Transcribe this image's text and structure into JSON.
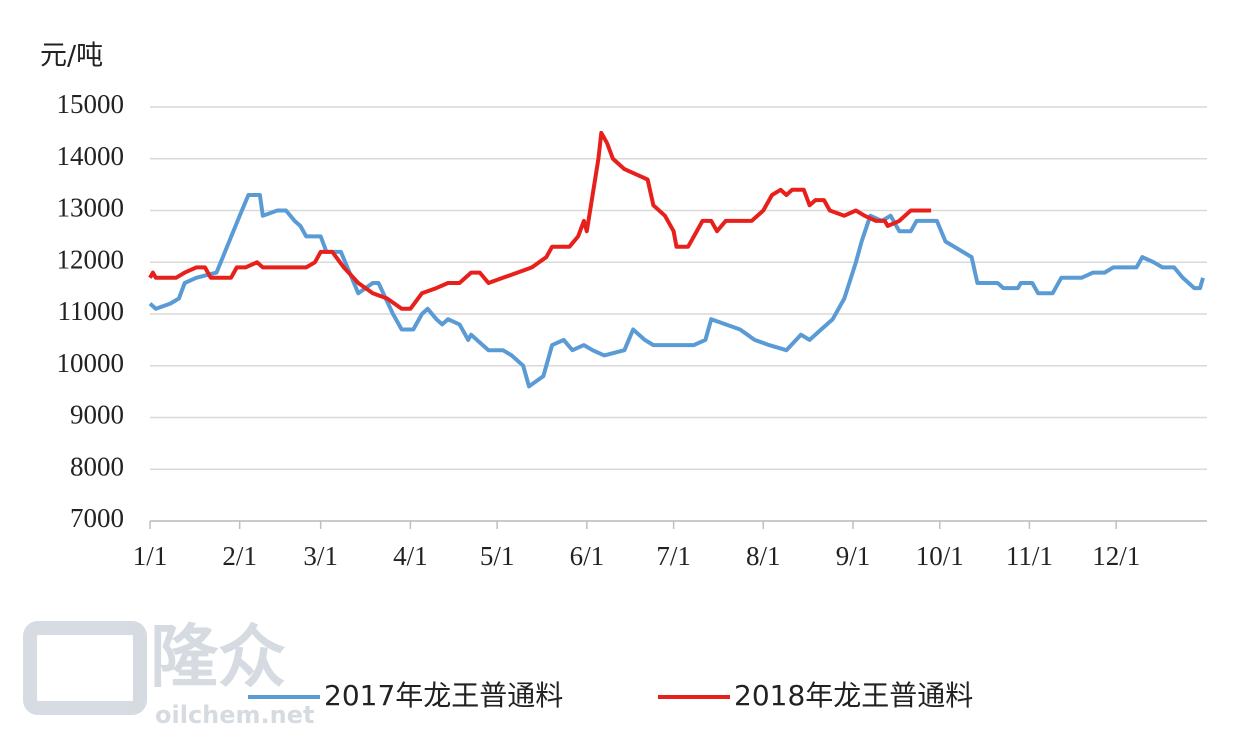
{
  "chart_data": {
    "type": "line",
    "y_label": "元/吨",
    "watermark": {
      "brand": "隆众",
      "site": "oilchem.net"
    },
    "xlim": [
      "1/1",
      "12/31"
    ],
    "xticks": [
      "1/1",
      "2/1",
      "3/1",
      "4/1",
      "5/1",
      "6/1",
      "7/1",
      "8/1",
      "9/1",
      "10/1",
      "11/1",
      "12/1"
    ],
    "ylim": [
      7000,
      15000
    ],
    "yticks": [
      7000,
      8000,
      9000,
      10000,
      11000,
      12000,
      13000,
      14000,
      15000
    ],
    "grid": true,
    "legend": "bottom",
    "series": [
      {
        "name": "2017年龙王普通料",
        "color": "#5b9bd5",
        "x": [
          "1/1",
          "1/3",
          "1/8",
          "1/11",
          "1/13",
          "1/17",
          "1/24",
          "2/1",
          "2/4",
          "2/8",
          "2/9",
          "2/14",
          "2/17",
          "2/20",
          "2/22",
          "2/24",
          "3/1",
          "3/3",
          "3/8",
          "3/11",
          "3/14",
          "3/19",
          "3/21",
          "3/26",
          "3/29",
          "4/2",
          "4/5",
          "4/7",
          "4/10",
          "4/12",
          "4/14",
          "4/18",
          "4/21",
          "4/22",
          "4/28",
          "5/3",
          "5/6",
          "5/10",
          "5/12",
          "5/17",
          "5/20",
          "5/24",
          "5/27",
          "5/31",
          "6/3",
          "6/7",
          "6/14",
          "6/17",
          "6/21",
          "6/24",
          "7/8",
          "7/12",
          "7/14",
          "7/19",
          "7/24",
          "7/29",
          "8/3",
          "8/9",
          "8/14",
          "8/17",
          "8/21",
          "8/25",
          "8/29",
          "9/2",
          "9/4",
          "9/7",
          "9/11",
          "9/14",
          "9/17",
          "9/21",
          "9/23",
          "9/30",
          "10/3",
          "10/12",
          "10/14",
          "10/21",
          "10/23",
          "10/28",
          "10/29",
          "11/2",
          "11/4",
          "11/9",
          "11/12",
          "11/19",
          "11/23",
          "11/27",
          "11/30",
          "12/8",
          "12/10",
          "12/14",
          "12/17",
          "12/21",
          "12/24",
          "12/28",
          "12/30",
          "12/31"
        ],
        "values": [
          11200,
          11100,
          11200,
          11300,
          11600,
          11700,
          11800,
          12900,
          13300,
          13300,
          12900,
          13000,
          13000,
          12800,
          12700,
          12500,
          12500,
          12200,
          12200,
          11800,
          11400,
          11600,
          11600,
          11000,
          10700,
          10700,
          11000,
          11100,
          10900,
          10800,
          10900,
          10800,
          10500,
          10600,
          10300,
          10300,
          10200,
          10000,
          9600,
          9800,
          10400,
          10500,
          10300,
          10400,
          10300,
          10200,
          10300,
          10700,
          10500,
          10400,
          10400,
          10500,
          10900,
          10800,
          10700,
          10500,
          10400,
          10300,
          10600,
          10500,
          10700,
          10900,
          11300,
          12000,
          12400,
          12900,
          12800,
          12900,
          12600,
          12600,
          12800,
          12800,
          12400,
          12100,
          11600,
          11600,
          11500,
          11500,
          11600,
          11600,
          11400,
          11400,
          11700,
          11700,
          11800,
          11800,
          11900,
          11900,
          12100,
          12000,
          11900,
          11900,
          11700,
          11500,
          11500,
          11700
        ]
      },
      {
        "name": "2018年龙王普通料",
        "color": "#e8201c",
        "x": [
          "1/1",
          "1/2",
          "1/3",
          "1/10",
          "1/13",
          "1/17",
          "1/20",
          "1/22",
          "1/29",
          "1/31",
          "2/3",
          "2/7",
          "2/9",
          "2/24",
          "2/27",
          "3/1",
          "3/5",
          "3/9",
          "3/14",
          "3/19",
          "3/24",
          "3/29",
          "4/1",
          "4/5",
          "4/10",
          "4/14",
          "4/18",
          "4/22",
          "4/25",
          "4/28",
          "5/3",
          "5/8",
          "5/13",
          "5/18",
          "5/20",
          "5/26",
          "5/29",
          "5/31",
          "6/1",
          "6/3",
          "6/5",
          "6/6",
          "6/8",
          "6/10",
          "6/14",
          "6/18",
          "6/22",
          "6/24",
          "6/28",
          "7/1",
          "7/2",
          "7/6",
          "7/8",
          "7/11",
          "7/14",
          "7/16",
          "7/19",
          "7/28",
          "8/1",
          "8/4",
          "8/7",
          "8/9",
          "8/11",
          "8/15",
          "8/17",
          "8/19",
          "8/22",
          "8/24",
          "8/29",
          "9/2",
          "9/5",
          "9/9",
          "9/12",
          "9/13",
          "9/17",
          "9/19",
          "9/21",
          "9/28"
        ],
        "values": [
          11700,
          11800,
          11700,
          11700,
          11800,
          11900,
          11900,
          11700,
          11700,
          11900,
          11900,
          12000,
          11900,
          11900,
          12000,
          12200,
          12200,
          11900,
          11600,
          11400,
          11300,
          11100,
          11100,
          11400,
          11500,
          11600,
          11600,
          11800,
          11800,
          11600,
          11700,
          11800,
          11900,
          12100,
          12300,
          12300,
          12500,
          12800,
          12600,
          13300,
          14000,
          14500,
          14300,
          14000,
          13800,
          13700,
          13600,
          13100,
          12900,
          12600,
          12300,
          12300,
          12500,
          12800,
          12800,
          12600,
          12800,
          12800,
          13000,
          13300,
          13400,
          13300,
          13400,
          13400,
          13100,
          13200,
          13200,
          13000,
          12900,
          13000,
          12900,
          12800,
          12800,
          12700,
          12800,
          12900,
          13000,
          13000
        ]
      }
    ]
  }
}
